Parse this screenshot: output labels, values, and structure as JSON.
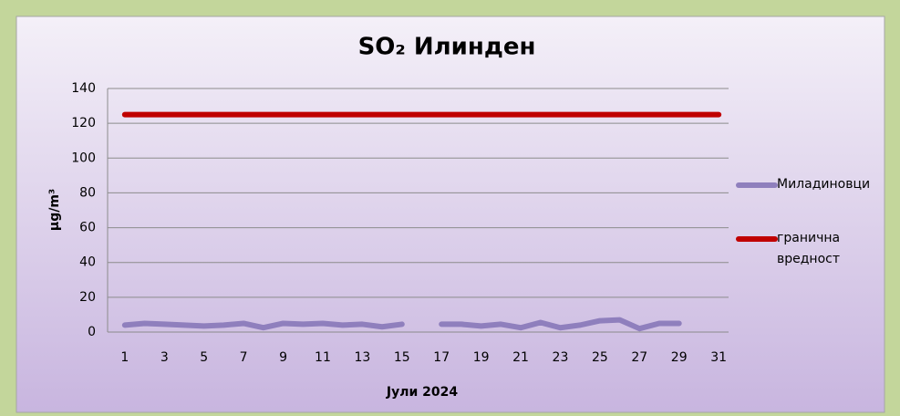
{
  "chart_data": {
    "type": "line",
    "title": "SO₂ Илинден",
    "x_label": "Јули 2024",
    "y_label": "µg/m³",
    "categories": [
      "1",
      null,
      "3",
      null,
      "5",
      null,
      "7",
      null,
      "9",
      null,
      "11",
      null,
      "13",
      null,
      "15",
      null,
      "17",
      null,
      "19",
      null,
      "21",
      null,
      "23",
      null,
      "25",
      null,
      "27",
      null,
      "29",
      null,
      "31"
    ],
    "series": [
      {
        "name": "Миладиновци",
        "color": "#8f7fbd",
        "values": [
          4,
          5,
          4.5,
          4,
          3.5,
          4,
          5,
          2.5,
          5,
          4.5,
          5,
          4,
          4.5,
          3,
          4.5,
          null,
          4.5,
          4.5,
          3.5,
          4.5,
          2.5,
          5.5,
          2.5,
          4,
          6.5,
          7,
          2,
          5,
          5,
          null,
          null
        ]
      },
      {
        "name": "гранична вредност",
        "color": "#c00000",
        "values": [
          125,
          125,
          125,
          125,
          125,
          125,
          125,
          125,
          125,
          125,
          125,
          125,
          125,
          125,
          125,
          125,
          125,
          125,
          125,
          125,
          125,
          125,
          125,
          125,
          125,
          125,
          125,
          125,
          125,
          125,
          125
        ]
      }
    ],
    "ylim": [
      0,
      140
    ],
    "yticks": [
      0,
      20,
      40,
      60,
      80,
      100,
      120,
      140
    ],
    "grid": true,
    "legend": "right"
  }
}
